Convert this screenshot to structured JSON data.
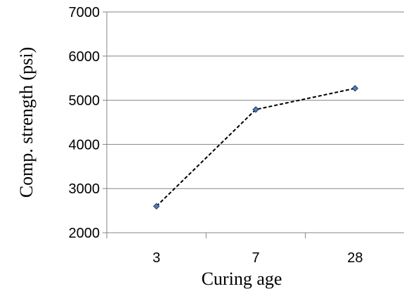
{
  "chart_data": {
    "type": "line",
    "categories": [
      "3",
      "7",
      "28"
    ],
    "series": [
      {
        "values": [
          2600,
          4790,
          5270
        ],
        "color": "#4f81bd",
        "line_style": "dashed",
        "line_color": "#000000",
        "marker": "diamond"
      }
    ],
    "xlabel": "Curing age",
    "ylabel": "Comp. strength (psi)",
    "ylim": [
      2000,
      7000
    ],
    "yticks": [
      "2000",
      "3000",
      "4000",
      "5000",
      "6000",
      "7000"
    ],
    "grid": "horizontal",
    "legend": "none"
  }
}
